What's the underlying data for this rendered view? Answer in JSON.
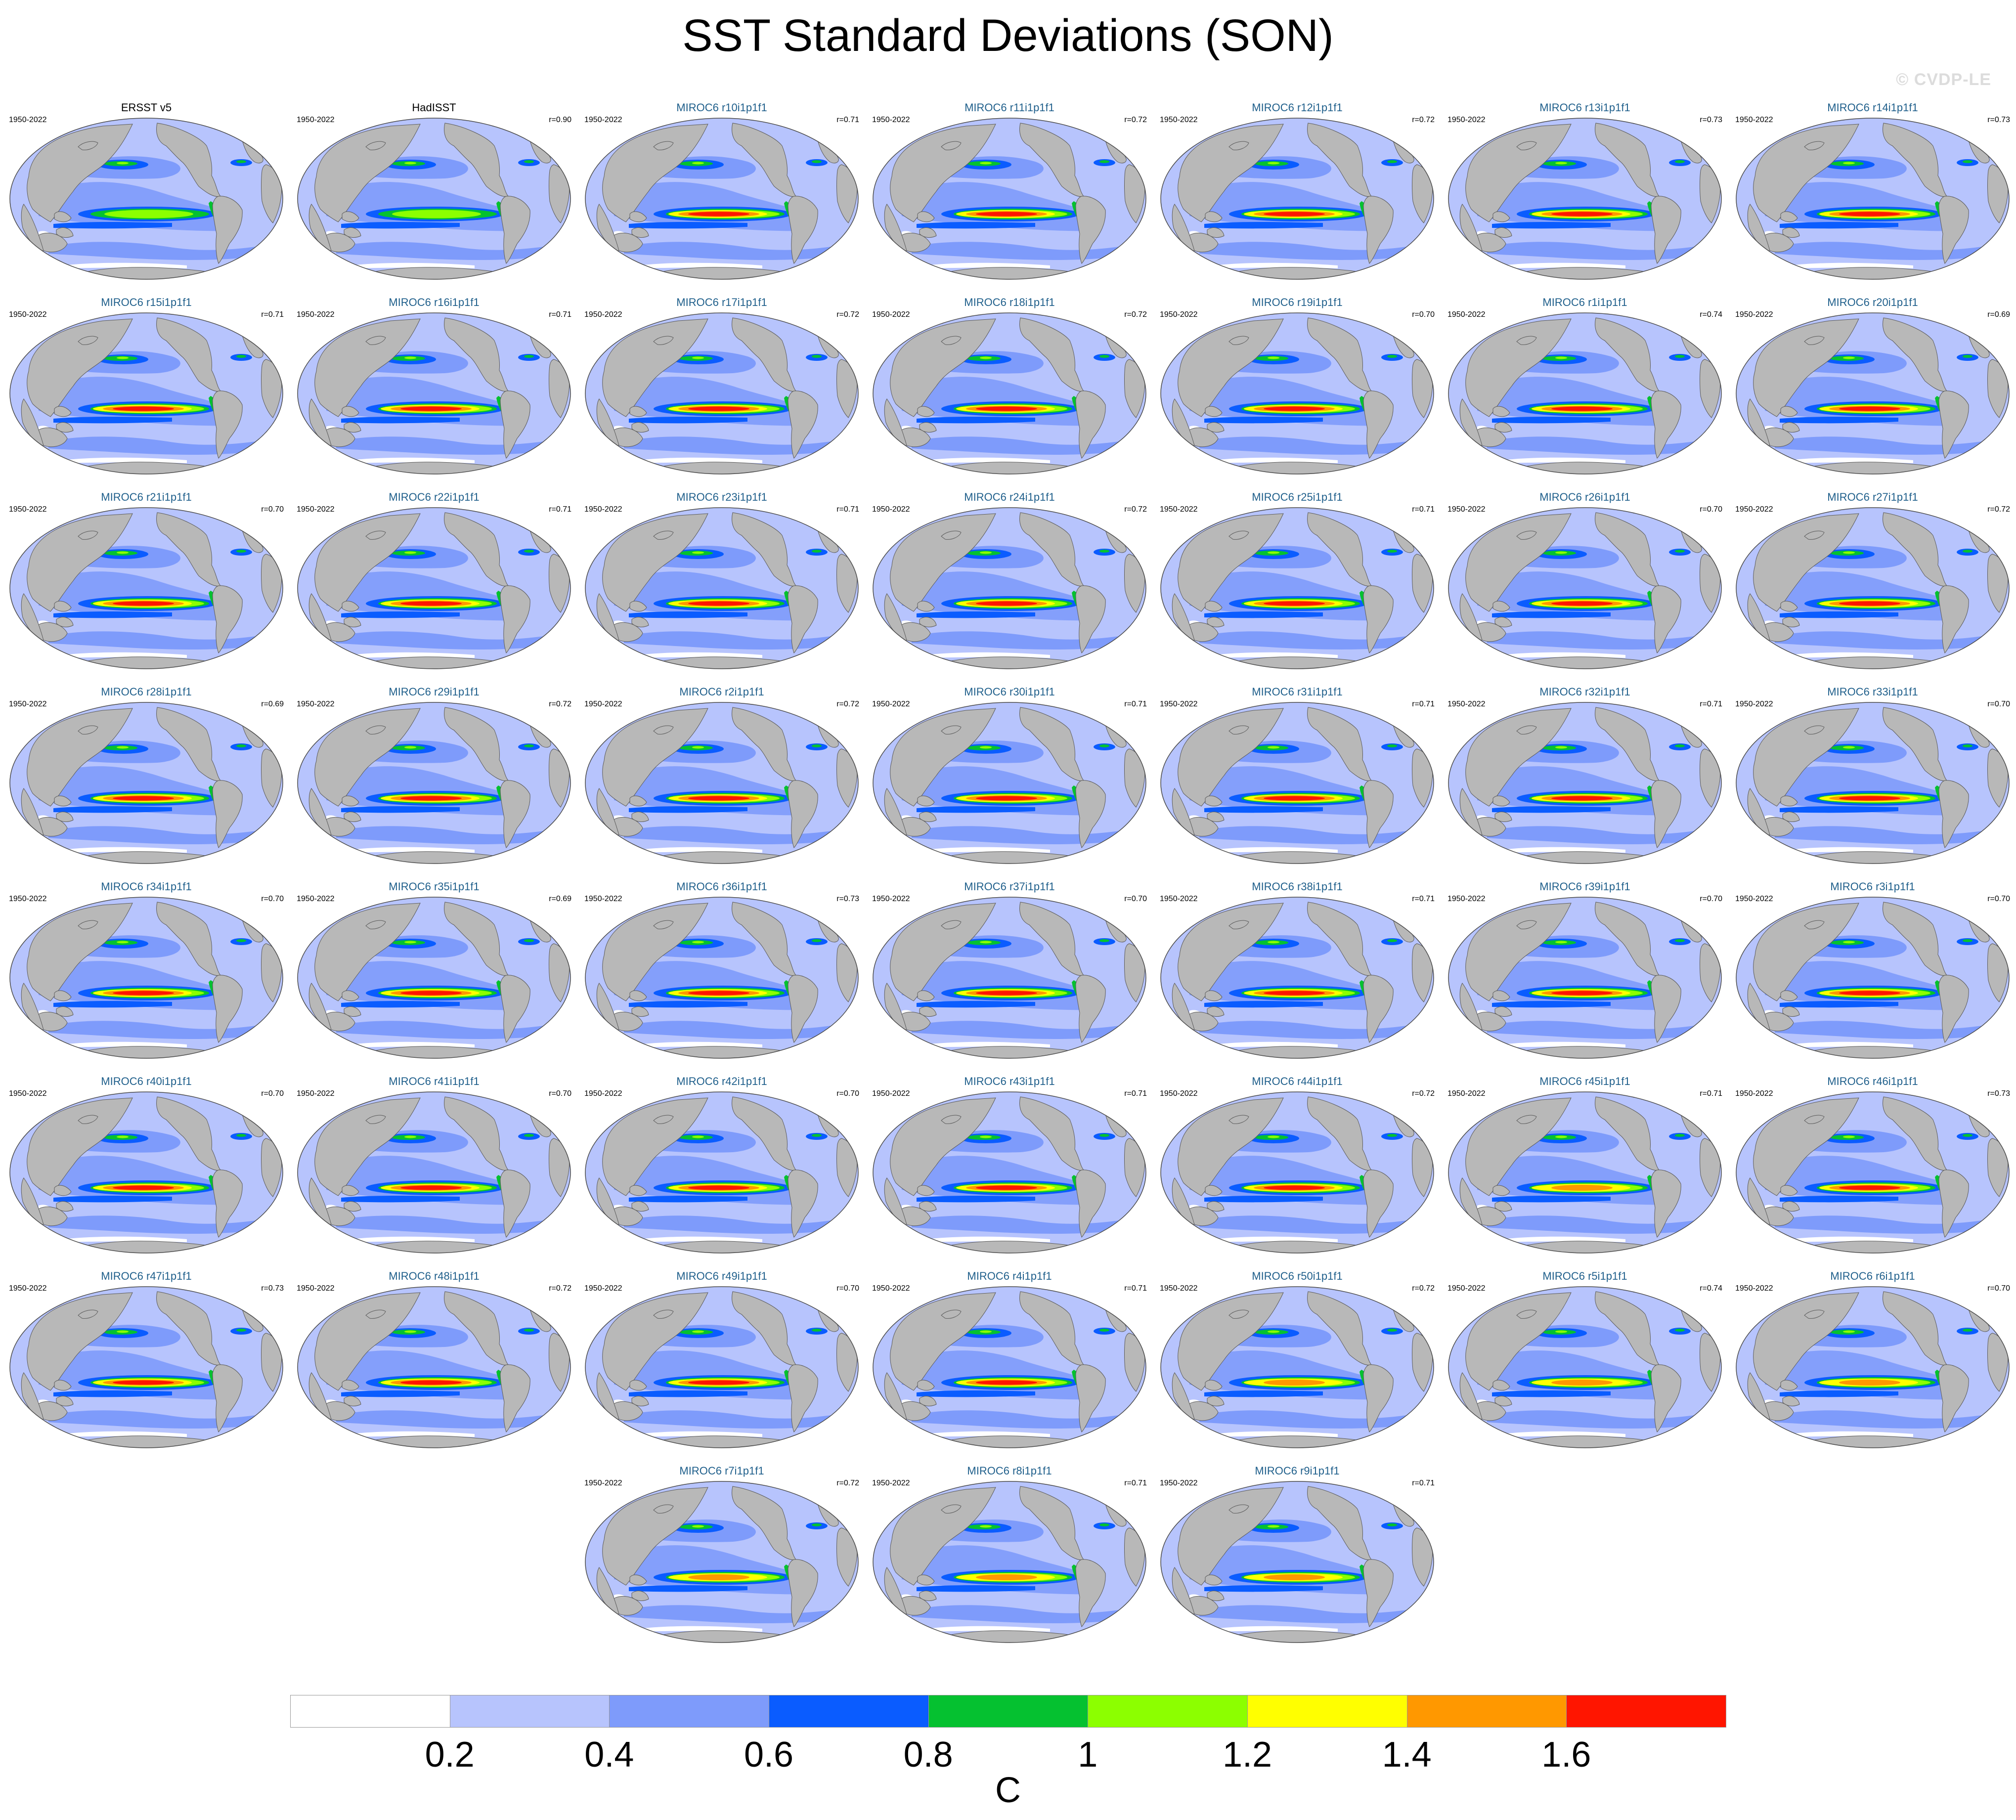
{
  "title": "SST Standard Deviations (SON)",
  "watermark": "© CVDP-LE",
  "colors": {
    "land": "#b8b8b8",
    "ocean_base": "#b7c4fd",
    "mid": "#7e9bfb",
    "blue": "#0a5cff",
    "green": "#05c130",
    "lime": "#8cff00",
    "yellow": "#ffff00",
    "orange": "#ff9800",
    "red": "#ff1500",
    "model_title": "#1f5f8b"
  },
  "colorbar": {
    "colors": [
      "#ffffff",
      "#b7c4fd",
      "#7e9bfb",
      "#0a5cff",
      "#05c130",
      "#8cff00",
      "#ffff00",
      "#ff9800",
      "#ff1500"
    ],
    "ticks": [
      "0.2",
      "0.4",
      "0.6",
      "0.8",
      "1",
      "1.2",
      "1.4",
      "1.6"
    ],
    "units": "C"
  },
  "panels": [
    {
      "name": "ERSST v5",
      "period": "1950-2022",
      "r": "",
      "obs": true,
      "max": 1.1
    },
    {
      "name": "HadISST",
      "period": "1950-2022",
      "r": "r=0.90",
      "obs": true,
      "max": 1.0
    },
    {
      "name": "MIROC6 r10i1p1f1",
      "period": "1950-2022",
      "r": "r=0.71",
      "max": 1.7
    },
    {
      "name": "MIROC6 r11i1p1f1",
      "period": "1950-2022",
      "r": "r=0.72",
      "max": 1.7
    },
    {
      "name": "MIROC6 r12i1p1f1",
      "period": "1950-2022",
      "r": "r=0.72",
      "max": 1.7
    },
    {
      "name": "MIROC6 r13i1p1f1",
      "period": "1950-2022",
      "r": "r=0.73",
      "max": 1.7
    },
    {
      "name": "MIROC6 r14i1p1f1",
      "period": "1950-2022",
      "r": "r=0.73",
      "max": 1.7
    },
    {
      "name": "MIROC6 r15i1p1f1",
      "period": "1950-2022",
      "r": "r=0.71",
      "max": 1.7
    },
    {
      "name": "MIROC6 r16i1p1f1",
      "period": "1950-2022",
      "r": "r=0.71",
      "max": 1.7
    },
    {
      "name": "MIROC6 r17i1p1f1",
      "period": "1950-2022",
      "r": "r=0.72",
      "max": 1.7
    },
    {
      "name": "MIROC6 r18i1p1f1",
      "period": "1950-2022",
      "r": "r=0.72",
      "max": 1.7
    },
    {
      "name": "MIROC6 r19i1p1f1",
      "period": "1950-2022",
      "r": "r=0.70",
      "max": 1.7
    },
    {
      "name": "MIROC6 r1i1p1f1",
      "period": "1950-2022",
      "r": "r=0.74",
      "max": 1.7
    },
    {
      "name": "MIROC6 r20i1p1f1",
      "period": "1950-2022",
      "r": "r=0.69",
      "max": 1.7
    },
    {
      "name": "MIROC6 r21i1p1f1",
      "period": "1950-2022",
      "r": "r=0.70",
      "max": 1.7
    },
    {
      "name": "MIROC6 r22i1p1f1",
      "period": "1950-2022",
      "r": "r=0.71",
      "max": 1.7
    },
    {
      "name": "MIROC6 r23i1p1f1",
      "period": "1950-2022",
      "r": "r=0.71",
      "max": 1.7
    },
    {
      "name": "MIROC6 r24i1p1f1",
      "period": "1950-2022",
      "r": "r=0.72",
      "max": 1.7
    },
    {
      "name": "MIROC6 r25i1p1f1",
      "period": "1950-2022",
      "r": "r=0.71",
      "max": 1.7
    },
    {
      "name": "MIROC6 r26i1p1f1",
      "period": "1950-2022",
      "r": "r=0.70",
      "max": 1.7
    },
    {
      "name": "MIROC6 r27i1p1f1",
      "period": "1950-2022",
      "r": "r=0.72",
      "max": 1.7
    },
    {
      "name": "MIROC6 r28i1p1f1",
      "period": "1950-2022",
      "r": "r=0.69",
      "max": 1.7
    },
    {
      "name": "MIROC6 r29i1p1f1",
      "period": "1950-2022",
      "r": "r=0.72",
      "max": 1.7
    },
    {
      "name": "MIROC6 r2i1p1f1",
      "period": "1950-2022",
      "r": "r=0.72",
      "max": 1.7
    },
    {
      "name": "MIROC6 r30i1p1f1",
      "period": "1950-2022",
      "r": "r=0.71",
      "max": 1.7
    },
    {
      "name": "MIROC6 r31i1p1f1",
      "period": "1950-2022",
      "r": "r=0.71",
      "max": 1.7
    },
    {
      "name": "MIROC6 r32i1p1f1",
      "period": "1950-2022",
      "r": "r=0.71",
      "max": 1.7
    },
    {
      "name": "MIROC6 r33i1p1f1",
      "period": "1950-2022",
      "r": "r=0.70",
      "max": 1.7
    },
    {
      "name": "MIROC6 r34i1p1f1",
      "period": "1950-2022",
      "r": "r=0.70",
      "max": 1.7
    },
    {
      "name": "MIROC6 r35i1p1f1",
      "period": "1950-2022",
      "r": "r=0.69",
      "max": 1.7
    },
    {
      "name": "MIROC6 r36i1p1f1",
      "period": "1950-2022",
      "r": "r=0.73",
      "max": 1.7
    },
    {
      "name": "MIROC6 r37i1p1f1",
      "period": "1950-2022",
      "r": "r=0.70",
      "max": 1.7
    },
    {
      "name": "MIROC6 r38i1p1f1",
      "period": "1950-2022",
      "r": "r=0.71",
      "max": 1.7
    },
    {
      "name": "MIROC6 r39i1p1f1",
      "period": "1950-2022",
      "r": "r=0.70",
      "max": 1.7
    },
    {
      "name": "MIROC6 r3i1p1f1",
      "period": "1950-2022",
      "r": "r=0.70",
      "max": 1.7
    },
    {
      "name": "MIROC6 r40i1p1f1",
      "period": "1950-2022",
      "r": "r=0.70",
      "max": 1.7
    },
    {
      "name": "MIROC6 r41i1p1f1",
      "period": "1950-2022",
      "r": "r=0.70",
      "max": 1.6
    },
    {
      "name": "MIROC6 r42i1p1f1",
      "period": "1950-2022",
      "r": "r=0.70",
      "max": 1.7
    },
    {
      "name": "MIROC6 r43i1p1f1",
      "period": "1950-2022",
      "r": "r=0.71",
      "max": 1.7
    },
    {
      "name": "MIROC6 r44i1p1f1",
      "period": "1950-2022",
      "r": "r=0.72",
      "max": 1.7
    },
    {
      "name": "MIROC6 r45i1p1f1",
      "period": "1950-2022",
      "r": "r=0.71",
      "max": 1.5
    },
    {
      "name": "MIROC6 r46i1p1f1",
      "period": "1950-2022",
      "r": "r=0.73",
      "max": 1.7
    },
    {
      "name": "MIROC6 r47i1p1f1",
      "period": "1950-2022",
      "r": "r=0.73",
      "max": 1.7
    },
    {
      "name": "MIROC6 r48i1p1f1",
      "period": "1950-2022",
      "r": "r=0.72",
      "max": 1.7
    },
    {
      "name": "MIROC6 r49i1p1f1",
      "period": "1950-2022",
      "r": "r=0.70",
      "max": 1.7
    },
    {
      "name": "MIROC6 r4i1p1f1",
      "period": "1950-2022",
      "r": "r=0.71",
      "max": 1.7
    },
    {
      "name": "MIROC6 r50i1p1f1",
      "period": "1950-2022",
      "r": "r=0.72",
      "max": 1.5
    },
    {
      "name": "MIROC6 r5i1p1f1",
      "period": "1950-2022",
      "r": "r=0.74",
      "max": 1.5
    },
    {
      "name": "MIROC6 r6i1p1f1",
      "period": "1950-2022",
      "r": "r=0.70",
      "max": 1.5
    },
    {
      "name": "MIROC6 r7i1p1f1",
      "period": "1950-2022",
      "r": "r=0.72",
      "max": 1.5
    },
    {
      "name": "MIROC6 r8i1p1f1",
      "period": "1950-2022",
      "r": "r=0.71",
      "max": 1.5
    },
    {
      "name": "MIROC6 r9i1p1f1",
      "period": "1950-2022",
      "r": "r=0.71",
      "max": 1.5
    }
  ]
}
